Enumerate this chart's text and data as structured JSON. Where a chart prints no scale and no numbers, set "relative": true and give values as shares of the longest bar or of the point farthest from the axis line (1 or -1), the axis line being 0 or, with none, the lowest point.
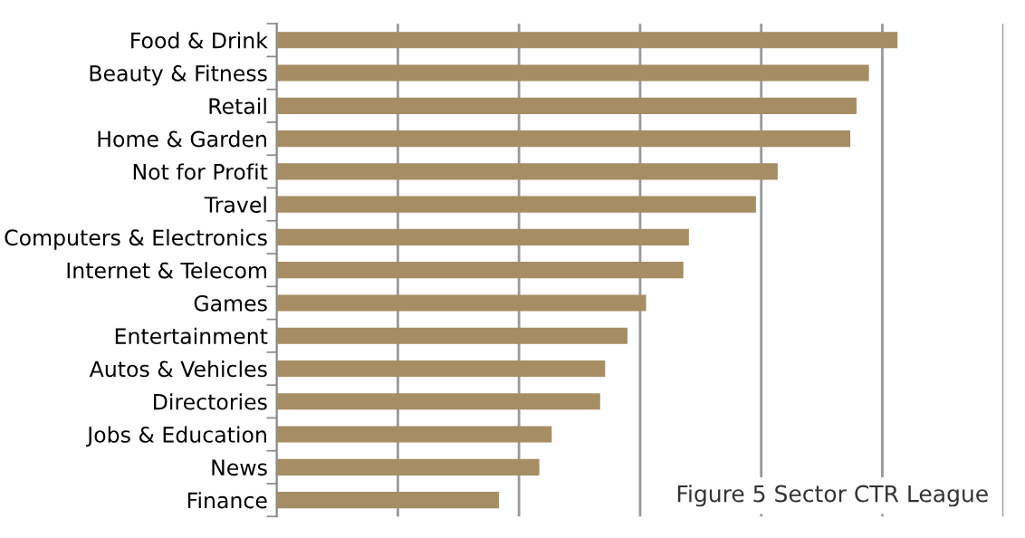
{
  "chart_data": {
    "type": "bar",
    "orientation": "horizontal",
    "relative": true,
    "grid": "x",
    "legend": false,
    "categories": [
      "Food & Drink",
      "Beauty & Fitness",
      "Retail",
      "Home & Garden",
      "Not for Profit",
      "Travel",
      "Computers & Electronics",
      "Internet & Telecom",
      "Games",
      "Entertainment",
      "Autos & Vehicles",
      "Directories",
      "Jobs & Education",
      "News",
      "Finance"
    ],
    "values": [
      1,
      0.954,
      0.934,
      0.924,
      0.807,
      0.772,
      0.664,
      0.655,
      0.595,
      0.565,
      0.529,
      0.521,
      0.443,
      0.423,
      0.358
    ],
    "color": "#a68d64",
    "annotations": [
      "Figure 5 Sector CTR League"
    ]
  }
}
